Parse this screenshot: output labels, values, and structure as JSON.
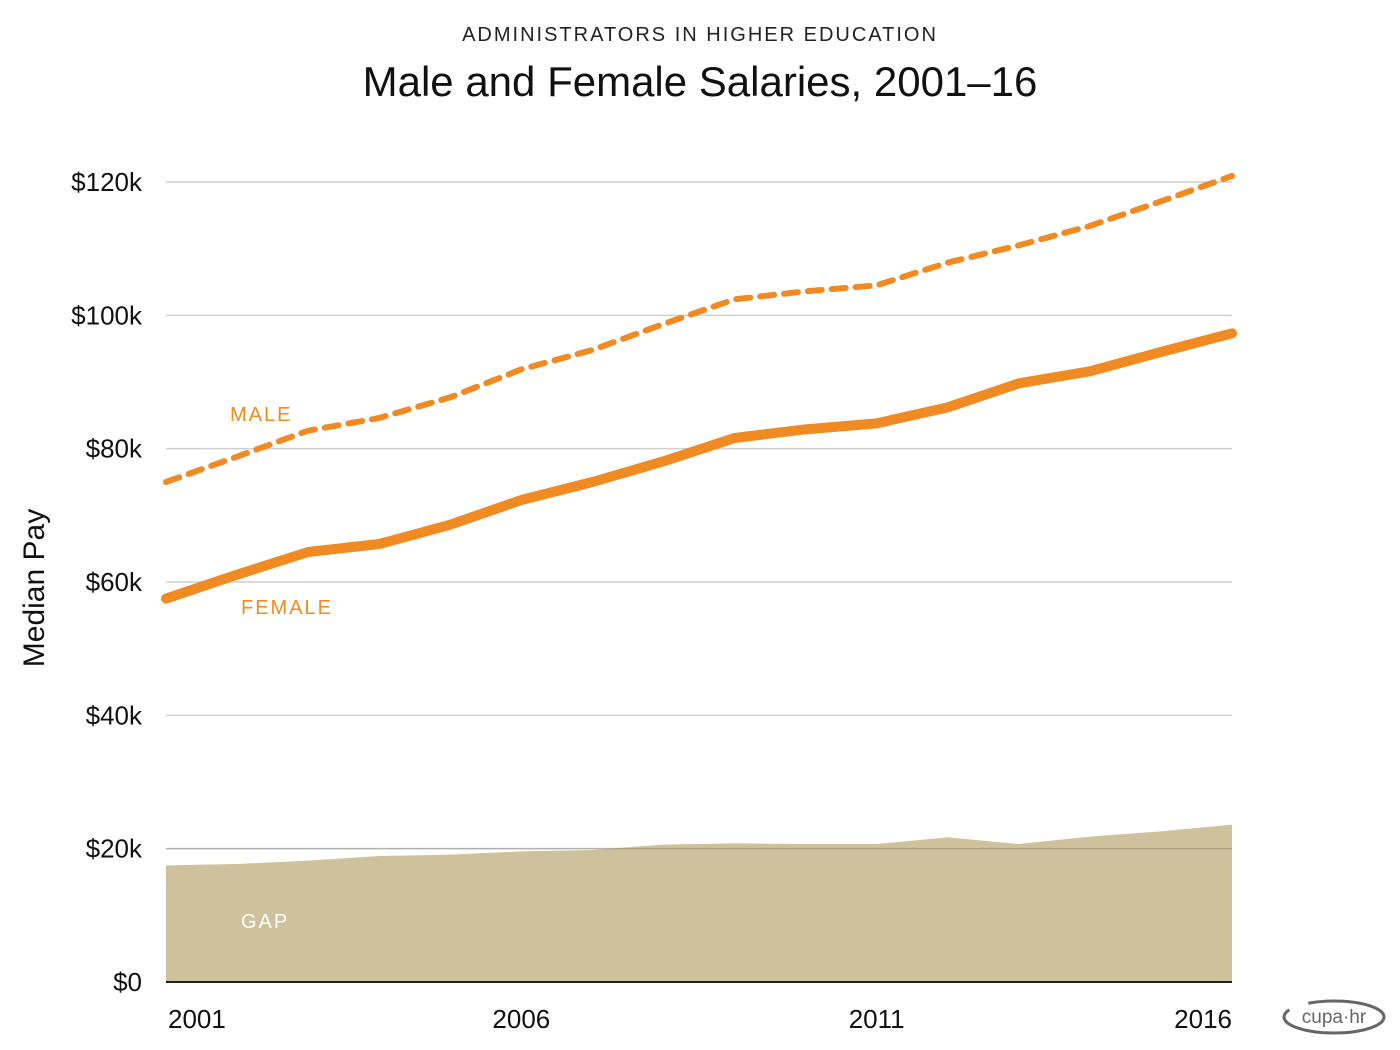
{
  "header": {
    "subtitle": "ADMINISTRATORS IN HIGHER EDUCATION",
    "title": "Male and Female Salaries, 2001–16"
  },
  "logo": {
    "text": "cupa·hr"
  },
  "colors": {
    "line": "#EF8B22",
    "gap_fill": "#D0C19D",
    "grid": "#CFCFCF",
    "axis": "#222222",
    "gap_label": "#FFFFFF"
  },
  "chart_data": {
    "type": "line",
    "title": "Male and Female Salaries, 2001–16",
    "subtitle": "ADMINISTRATORS IN HIGHER EDUCATION",
    "xlabel": "",
    "ylabel": "Median Pay",
    "x": [
      2001,
      2002,
      2003,
      2004,
      2005,
      2006,
      2007,
      2008,
      2009,
      2010,
      2011,
      2012,
      2013,
      2014,
      2015,
      2016
    ],
    "x_ticks": [
      2001,
      2006,
      2011,
      2016
    ],
    "x_tick_labels": [
      "2001",
      "2006",
      "2011",
      "2016"
    ],
    "xlim": [
      2001,
      2016
    ],
    "ylim": [
      0,
      120000
    ],
    "y_ticks": [
      0,
      20000,
      40000,
      60000,
      80000,
      100000,
      120000
    ],
    "y_tick_labels": [
      "$0",
      "$20k",
      "$40k",
      "$60k",
      "$80k",
      "$100k",
      "$120k"
    ],
    "grid": true,
    "series": [
      {
        "name": "MALE",
        "style": "dashed",
        "values": [
          75000,
          78800,
          82700,
          84600,
          87700,
          91900,
          94800,
          98700,
          102400,
          103600,
          104500,
          107900,
          110500,
          113400,
          117100,
          120900
        ]
      },
      {
        "name": "FEMALE",
        "style": "solid",
        "values": [
          57500,
          61100,
          64500,
          65700,
          68600,
          72300,
          75000,
          78100,
          81600,
          82900,
          83800,
          86200,
          89800,
          91600,
          94500,
          97300
        ]
      },
      {
        "name": "GAP",
        "style": "area",
        "values": [
          17500,
          17700,
          18200,
          18900,
          19100,
          19600,
          19800,
          20600,
          20800,
          20700,
          20700,
          21700,
          20700,
          21800,
          22600,
          23600
        ]
      }
    ],
    "annotations": [
      "MALE",
      "FEMALE",
      "GAP"
    ],
    "legend": "inline labels"
  }
}
